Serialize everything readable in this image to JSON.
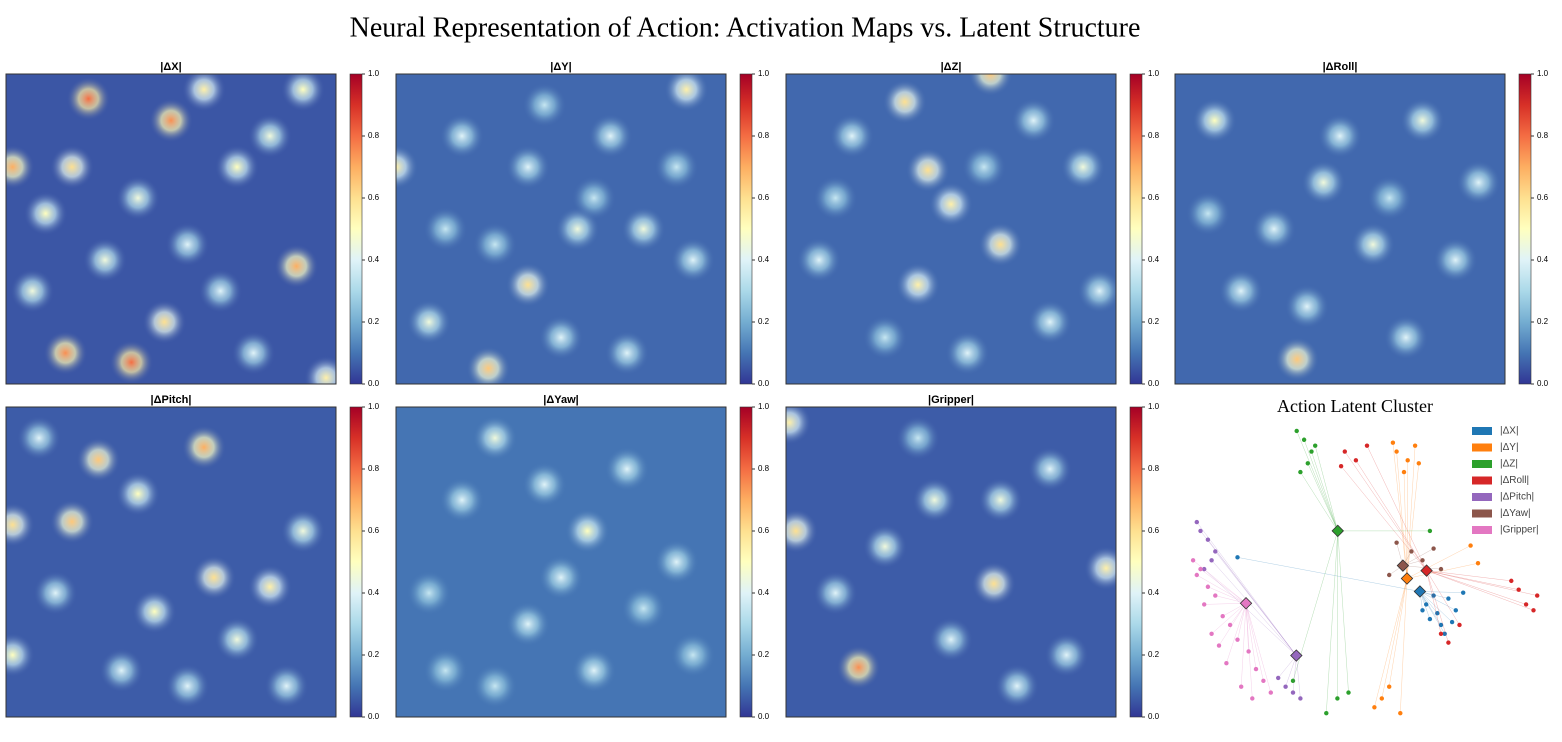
{
  "title": "Neural Representation of Action: Activation Maps vs. Latent Structure",
  "chart_data": [
    {
      "type": "heatmap",
      "title": "|ΔX|",
      "background": 0.05,
      "x": [
        0.25,
        0.5,
        0.02,
        0.2,
        0.88,
        0.18,
        0.38,
        0.48,
        0.6,
        0.7,
        0.12,
        0.97,
        0.4,
        0.3,
        0.8,
        0.65,
        0.08,
        0.55,
        0.9,
        0.75
      ],
      "y": [
        0.08,
        0.15,
        0.3,
        0.3,
        0.62,
        0.9,
        0.93,
        0.8,
        0.05,
        0.3,
        0.45,
        0.98,
        0.4,
        0.6,
        0.2,
        0.7,
        0.7,
        0.55,
        0.05,
        0.9
      ],
      "values": [
        0.8,
        0.75,
        0.7,
        0.6,
        0.7,
        0.75,
        0.8,
        0.6,
        0.55,
        0.5,
        0.5,
        0.55,
        0.45,
        0.45,
        0.45,
        0.4,
        0.45,
        0.4,
        0.5,
        0.4
      ],
      "clim": [
        0,
        1
      ],
      "cticks": [
        {
          "value": 0,
          "label": "0.0"
        },
        {
          "value": 0.2,
          "label": "0.2"
        },
        {
          "value": 0.4,
          "label": "0.4"
        },
        {
          "value": 0.6,
          "label": "0.6"
        },
        {
          "value": 0.8,
          "label": "0.8"
        },
        {
          "value": 1,
          "label": "1.0"
        }
      ]
    },
    {
      "type": "heatmap",
      "title": "|ΔY|",
      "background": 0.08,
      "x": [
        0.0,
        0.4,
        0.88,
        0.28,
        0.55,
        0.75,
        0.2,
        0.65,
        0.4,
        0.1,
        0.9,
        0.5,
        0.3,
        0.7,
        0.85,
        0.15,
        0.6,
        0.45
      ],
      "y": [
        0.3,
        0.68,
        0.05,
        0.95,
        0.5,
        0.5,
        0.2,
        0.2,
        0.3,
        0.8,
        0.6,
        0.85,
        0.55,
        0.9,
        0.3,
        0.5,
        0.4,
        0.1
      ],
      "values": [
        0.55,
        0.6,
        0.55,
        0.65,
        0.45,
        0.45,
        0.4,
        0.4,
        0.4,
        0.45,
        0.4,
        0.4,
        0.35,
        0.4,
        0.35,
        0.35,
        0.35,
        0.35
      ],
      "clim": [
        0,
        1
      ],
      "cticks": [
        {
          "value": 0,
          "label": "0.0"
        },
        {
          "value": 0.2,
          "label": "0.2"
        },
        {
          "value": 0.4,
          "label": "0.4"
        },
        {
          "value": 0.6,
          "label": "0.6"
        },
        {
          "value": 0.8,
          "label": "0.8"
        },
        {
          "value": 1,
          "label": "1.0"
        }
      ]
    },
    {
      "type": "heatmap",
      "title": "|ΔZ|",
      "background": 0.08,
      "x": [
        0.36,
        0.62,
        0.43,
        0.5,
        0.65,
        0.4,
        0.9,
        0.2,
        0.8,
        0.1,
        0.55,
        0.3,
        0.75,
        0.95,
        0.15,
        0.6
      ],
      "y": [
        0.09,
        0.0,
        0.31,
        0.42,
        0.55,
        0.68,
        0.3,
        0.2,
        0.8,
        0.6,
        0.9,
        0.85,
        0.15,
        0.7,
        0.4,
        0.3
      ],
      "values": [
        0.6,
        0.65,
        0.6,
        0.55,
        0.6,
        0.55,
        0.45,
        0.4,
        0.4,
        0.4,
        0.4,
        0.35,
        0.4,
        0.4,
        0.35,
        0.35
      ],
      "clim": [
        0,
        1
      ],
      "cticks": [
        {
          "value": 0,
          "label": "0.0"
        },
        {
          "value": 0.2,
          "label": "0.2"
        },
        {
          "value": 0.4,
          "label": "0.4"
        },
        {
          "value": 0.6,
          "label": "0.6"
        },
        {
          "value": 0.8,
          "label": "0.8"
        },
        {
          "value": 1,
          "label": "1.0"
        }
      ]
    },
    {
      "type": "heatmap",
      "title": "|ΔRoll|",
      "background": 0.08,
      "x": [
        0.37,
        0.12,
        0.75,
        0.45,
        0.6,
        0.3,
        0.85,
        0.2,
        0.5,
        0.7,
        0.92,
        0.1,
        0.4,
        0.65
      ],
      "y": [
        0.92,
        0.15,
        0.15,
        0.35,
        0.55,
        0.5,
        0.6,
        0.7,
        0.2,
        0.85,
        0.35,
        0.45,
        0.75,
        0.4
      ],
      "values": [
        0.65,
        0.5,
        0.45,
        0.45,
        0.45,
        0.4,
        0.4,
        0.4,
        0.4,
        0.4,
        0.4,
        0.35,
        0.4,
        0.35
      ],
      "clim": [
        0,
        1
      ],
      "cticks": [
        {
          "value": 0,
          "label": "0.0"
        },
        {
          "value": 0.2,
          "label": "0.2"
        },
        {
          "value": 0.4,
          "label": "0.4"
        },
        {
          "value": 0.6,
          "label": "0.6"
        },
        {
          "value": 0.8,
          "label": "0.8"
        },
        {
          "value": 1,
          "label": "1.0"
        }
      ]
    },
    {
      "type": "heatmap",
      "title": "|ΔPitch|",
      "background": 0.06,
      "x": [
        0.6,
        0.28,
        0.2,
        0.02,
        0.63,
        0.8,
        0.4,
        0.45,
        0.9,
        0.02,
        0.7,
        0.15,
        0.55,
        0.35,
        0.85,
        0.1
      ],
      "y": [
        0.13,
        0.17,
        0.37,
        0.38,
        0.55,
        0.58,
        0.28,
        0.66,
        0.4,
        0.8,
        0.75,
        0.6,
        0.9,
        0.85,
        0.9,
        0.1
      ],
      "values": [
        0.7,
        0.65,
        0.65,
        0.6,
        0.6,
        0.55,
        0.5,
        0.5,
        0.45,
        0.5,
        0.45,
        0.4,
        0.4,
        0.4,
        0.4,
        0.4
      ],
      "clim": [
        0,
        1
      ],
      "cticks": [
        {
          "value": 0,
          "label": "0.0"
        },
        {
          "value": 0.2,
          "label": "0.2"
        },
        {
          "value": 0.4,
          "label": "0.4"
        },
        {
          "value": 0.6,
          "label": "0.6"
        },
        {
          "value": 0.8,
          "label": "0.8"
        },
        {
          "value": 1,
          "label": "1.0"
        }
      ]
    },
    {
      "type": "heatmap",
      "title": "|ΔYaw|",
      "background": 0.1,
      "x": [
        0.3,
        0.58,
        0.2,
        0.45,
        0.7,
        0.85,
        0.1,
        0.4,
        0.6,
        0.9,
        0.3,
        0.75,
        0.5,
        0.15
      ],
      "y": [
        0.1,
        0.4,
        0.3,
        0.25,
        0.2,
        0.5,
        0.6,
        0.7,
        0.85,
        0.8,
        0.9,
        0.65,
        0.55,
        0.85
      ],
      "values": [
        0.45,
        0.5,
        0.4,
        0.4,
        0.4,
        0.4,
        0.35,
        0.4,
        0.4,
        0.35,
        0.35,
        0.35,
        0.4,
        0.35
      ],
      "clim": [
        0,
        1
      ],
      "cticks": [
        {
          "value": 0,
          "label": "0.0"
        },
        {
          "value": 0.2,
          "label": "0.2"
        },
        {
          "value": 0.4,
          "label": "0.4"
        },
        {
          "value": 0.6,
          "label": "0.6"
        },
        {
          "value": 0.8,
          "label": "0.8"
        },
        {
          "value": 1,
          "label": "1.0"
        }
      ]
    },
    {
      "type": "heatmap",
      "title": "|Gripper|",
      "background": 0.06,
      "x": [
        0.22,
        0.03,
        0.63,
        0.97,
        0.01,
        0.65,
        0.45,
        0.3,
        0.8,
        0.5,
        0.15,
        0.85,
        0.4,
        0.7
      ],
      "y": [
        0.84,
        0.4,
        0.57,
        0.52,
        0.05,
        0.3,
        0.3,
        0.45,
        0.2,
        0.75,
        0.6,
        0.8,
        0.1,
        0.9
      ],
      "values": [
        0.75,
        0.6,
        0.6,
        0.55,
        0.55,
        0.45,
        0.45,
        0.45,
        0.4,
        0.4,
        0.4,
        0.4,
        0.35,
        0.4
      ],
      "clim": [
        0,
        1
      ],
      "cticks": [
        {
          "value": 0,
          "label": "0.0"
        },
        {
          "value": 0.2,
          "label": "0.2"
        },
        {
          "value": 0.4,
          "label": "0.4"
        },
        {
          "value": 0.6,
          "label": "0.6"
        },
        {
          "value": 0.8,
          "label": "0.8"
        },
        {
          "value": 1,
          "label": "1.0"
        }
      ]
    },
    {
      "type": "scatter",
      "title": "Action Latent Cluster",
      "xlim": [
        0,
        100
      ],
      "ylim": [
        0,
        100
      ],
      "legend": "upper right",
      "series": [
        {
          "name": "|ΔX|",
          "color": "#1f77b4",
          "centroid": [
            64.3,
            44.4
          ],
          "x": [
            66,
            69,
            72,
            70,
            74,
            67,
            71,
            76,
            68,
            73,
            65,
            15
          ],
          "y": [
            40,
            37,
            42,
            33,
            38,
            35,
            30,
            44,
            43,
            34,
            38,
            56
          ]
        },
        {
          "name": "|ΔY|",
          "color": "#ff7f0e",
          "centroid": [
            60.8,
            48.8
          ],
          "x": [
            58,
            61,
            63,
            60,
            64,
            57,
            54,
            52,
            56,
            59,
            78,
            80
          ],
          "y": [
            92,
            89,
            94,
            85,
            88,
            95,
            8,
            5,
            12,
            3,
            60,
            54
          ]
        },
        {
          "name": "|ΔZ|",
          "color": "#2ca02c",
          "centroid": [
            42.1,
            65.0
          ],
          "x": [
            33,
            35,
            31,
            34,
            36,
            32,
            42,
            45,
            39,
            30,
            67
          ],
          "y": [
            96,
            92,
            99,
            88,
            94,
            85,
            8,
            10,
            3,
            14,
            65
          ]
        },
        {
          "name": "|ΔRoll|",
          "color": "#d62728",
          "centroid": [
            66.1,
            51.5
          ],
          "x": [
            44,
            47,
            50,
            43,
            91,
            93,
            95,
            89,
            96,
            70,
            72,
            75
          ],
          "y": [
            92,
            89,
            94,
            87,
            45,
            40,
            38,
            48,
            43,
            30,
            27,
            33
          ]
        },
        {
          "name": "|ΔPitch|",
          "color": "#9467bd",
          "centroid": [
            30.9,
            22.6
          ],
          "x": [
            5,
            7,
            4,
            28,
            30,
            26,
            32,
            8,
            9,
            6
          ],
          "y": [
            65,
            62,
            68,
            12,
            10,
            15,
            8,
            55,
            58,
            52
          ]
        },
        {
          "name": "|ΔYaw|",
          "color": "#8c564b",
          "centroid": [
            59.7,
            53.2
          ],
          "x": [
            62,
            65,
            58,
            56,
            70,
            68
          ],
          "y": [
            58,
            55,
            61,
            50,
            52,
            59
          ]
        },
        {
          "name": "|Gripper|",
          "color": "#e377c2",
          "centroid": [
            17.3,
            40.4
          ],
          "x": [
            3,
            5,
            4,
            7,
            9,
            6,
            11,
            13,
            15,
            18,
            20,
            22,
            24,
            10,
            8,
            12,
            16,
            19
          ],
          "y": [
            55,
            52,
            50,
            46,
            43,
            40,
            36,
            33,
            28,
            24,
            18,
            14,
            10,
            26,
            30,
            20,
            12,
            8
          ]
        }
      ]
    }
  ]
}
